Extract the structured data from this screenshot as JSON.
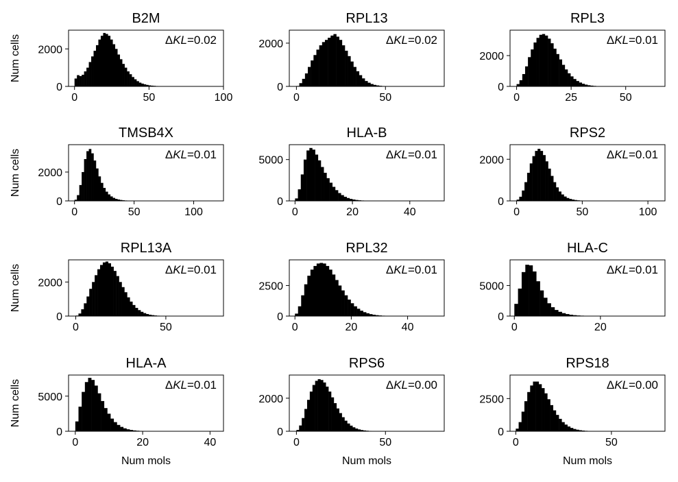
{
  "figure": {
    "ylabel": "Num cells",
    "xlabel": "Num mols",
    "annotation_prefix": "Δ",
    "annotation_var": "KL",
    "bar_color": "#000000"
  },
  "chart_data": [
    {
      "type": "bar",
      "title": "B2M",
      "annotation_value": "=0.02",
      "xlim": [
        -4,
        100
      ],
      "ylim": [
        0,
        3000
      ],
      "xticks": [
        0,
        50,
        100
      ],
      "yticks": [
        0,
        2000
      ],
      "x_start": 0,
      "bin_width": 1.6,
      "values": [
        420,
        600,
        550,
        620,
        800,
        1000,
        1300,
        1600,
        1900,
        2200,
        2500,
        2700,
        2850,
        2800,
        2700,
        2500,
        2250,
        2000,
        1700,
        1450,
        1200,
        1000,
        800,
        650,
        500,
        380,
        280,
        200,
        150,
        110,
        80,
        55,
        40,
        30,
        20,
        14,
        10,
        7,
        5,
        3,
        2,
        1
      ]
    },
    {
      "type": "bar",
      "title": "RPL13",
      "annotation_value": "=0.02",
      "xlim": [
        -4,
        83
      ],
      "ylim": [
        0,
        2600
      ],
      "xticks": [
        0,
        50
      ],
      "yticks": [
        0,
        2000
      ],
      "x_start": 0,
      "bin_width": 1.6,
      "values": [
        20,
        150,
        350,
        600,
        900,
        1200,
        1450,
        1700,
        1900,
        2050,
        2150,
        2250,
        2350,
        2420,
        2300,
        2150,
        1900,
        1650,
        1400,
        1150,
        900,
        700,
        520,
        370,
        250,
        170,
        110,
        70,
        45,
        28,
        17,
        10,
        6,
        4,
        2,
        1
      ]
    },
    {
      "type": "bar",
      "title": "RPL3",
      "annotation_value": "=0.01",
      "xlim": [
        -3,
        68
      ],
      "ylim": [
        0,
        3650
      ],
      "xticks": [
        0,
        25,
        50
      ],
      "yticks": [
        0,
        2000
      ],
      "x_start": 0,
      "bin_width": 1.3,
      "values": [
        150,
        400,
        800,
        1300,
        1900,
        2400,
        2850,
        3150,
        3350,
        3400,
        3300,
        3100,
        2800,
        2450,
        2100,
        1750,
        1400,
        1100,
        850,
        650,
        480,
        350,
        250,
        170,
        115,
        75,
        50,
        32,
        20,
        13,
        8,
        5,
        3,
        2
      ]
    },
    {
      "type": "bar",
      "title": "TMSB4X",
      "annotation_value": "=0.01",
      "xlim": [
        -5,
        125
      ],
      "ylim": [
        0,
        3900
      ],
      "xticks": [
        0,
        50,
        100
      ],
      "yticks": [
        0,
        2000
      ],
      "x_start": 0,
      "bin_width": 2,
      "values": [
        80,
        400,
        1100,
        2000,
        2900,
        3450,
        3600,
        3300,
        2800,
        2250,
        1700,
        1250,
        900,
        640,
        450,
        310,
        210,
        140,
        95,
        64,
        43,
        29,
        19,
        13,
        9,
        6,
        4,
        2,
        1
      ]
    },
    {
      "type": "bar",
      "title": "HLA-B",
      "annotation_value": "=0.01",
      "xlim": [
        -2,
        52
      ],
      "ylim": [
        0,
        6800
      ],
      "xticks": [
        0,
        20,
        40
      ],
      "yticks": [
        0,
        5000
      ],
      "x_start": 0,
      "bin_width": 1,
      "values": [
        300,
        1400,
        3200,
        5000,
        6100,
        6400,
        6200,
        5600,
        4900,
        4100,
        3400,
        2750,
        2200,
        1700,
        1300,
        950,
        700,
        500,
        350,
        240,
        165,
        110,
        75,
        50,
        33,
        22,
        14,
        9,
        6,
        4,
        2,
        1
      ]
    },
    {
      "type": "bar",
      "title": "RPS2",
      "annotation_value": "=0.01",
      "xlim": [
        -5,
        113
      ],
      "ylim": [
        0,
        2700
      ],
      "xticks": [
        0,
        50,
        100
      ],
      "yticks": [
        0,
        2000
      ],
      "x_start": 0,
      "bin_width": 2,
      "values": [
        60,
        200,
        500,
        900,
        1350,
        1800,
        2150,
        2400,
        2500,
        2400,
        2200,
        1900,
        1550,
        1200,
        900,
        650,
        450,
        310,
        210,
        140,
        95,
        63,
        42,
        28,
        18,
        12,
        8,
        5,
        3,
        2,
        1
      ]
    },
    {
      "type": "bar",
      "title": "RPL13A",
      "annotation_value": "=0.01",
      "xlim": [
        -4,
        82
      ],
      "ylim": [
        0,
        3300
      ],
      "xticks": [
        0,
        50
      ],
      "yticks": [
        0,
        2000
      ],
      "x_start": 0,
      "bin_width": 1.5,
      "values": [
        30,
        150,
        400,
        750,
        1150,
        1600,
        2000,
        2400,
        2750,
        3000,
        3150,
        3200,
        3100,
        2900,
        2650,
        2350,
        2000,
        1700,
        1400,
        1100,
        850,
        650,
        480,
        350,
        250,
        175,
        120,
        80,
        55,
        36,
        24,
        15,
        10,
        6,
        4,
        2,
        1
      ]
    },
    {
      "type": "bar",
      "title": "RPL32",
      "annotation_value": "=0.01",
      "xlim": [
        -2,
        53
      ],
      "ylim": [
        0,
        4600
      ],
      "xticks": [
        0,
        20,
        40
      ],
      "yticks": [
        0,
        2500
      ],
      "x_start": 0,
      "bin_width": 1.1,
      "values": [
        200,
        800,
        1700,
        2600,
        3300,
        3800,
        4100,
        4300,
        4350,
        4300,
        4100,
        3800,
        3400,
        2950,
        2500,
        2100,
        1700,
        1350,
        1050,
        800,
        600,
        440,
        320,
        230,
        160,
        110,
        75,
        50,
        33,
        22,
        14,
        9,
        6,
        4,
        2,
        1
      ]
    },
    {
      "type": "bar",
      "title": "HLA-C",
      "annotation_value": "=0.01",
      "xlim": [
        -1,
        35
      ],
      "ylim": [
        0,
        9200
      ],
      "xticks": [
        0,
        20
      ],
      "yticks": [
        0,
        5000
      ],
      "x_start": 0,
      "bin_width": 0.85,
      "values": [
        2000,
        4500,
        7200,
        8400,
        8300,
        7300,
        5700,
        4200,
        3000,
        2100,
        1450,
        1000,
        700,
        480,
        330,
        220,
        150,
        100,
        70,
        45,
        30,
        20,
        13,
        9,
        6,
        4,
        2,
        1
      ]
    },
    {
      "type": "bar",
      "title": "HLA-A",
      "annotation_value": "=0.01",
      "xlim": [
        -2,
        44
      ],
      "ylim": [
        0,
        8000
      ],
      "xticks": [
        0,
        20,
        40
      ],
      "yticks": [
        0,
        5000
      ],
      "x_start": 0,
      "bin_width": 0.95,
      "values": [
        1400,
        3500,
        5600,
        7000,
        7600,
        7300,
        6500,
        5400,
        4300,
        3300,
        2500,
        1800,
        1300,
        900,
        620,
        420,
        280,
        185,
        120,
        80,
        52,
        34,
        22,
        14,
        9,
        6,
        4,
        2,
        1
      ]
    },
    {
      "type": "bar",
      "title": "RPS6",
      "annotation_value": "=0.00",
      "xlim": [
        -4,
        83
      ],
      "ylim": [
        0,
        3400
      ],
      "xticks": [
        0,
        50
      ],
      "yticks": [
        0,
        2000
      ],
      "x_start": 0,
      "bin_width": 1.5,
      "values": [
        80,
        350,
        800,
        1350,
        1900,
        2400,
        2800,
        3050,
        3150,
        3100,
        2950,
        2700,
        2400,
        2050,
        1700,
        1380,
        1100,
        850,
        640,
        470,
        340,
        240,
        165,
        112,
        75,
        50,
        33,
        22,
        14,
        9,
        6,
        4,
        2,
        1
      ]
    },
    {
      "type": "bar",
      "title": "RPS18",
      "annotation_value": "=0.00",
      "xlim": [
        -3,
        78
      ],
      "ylim": [
        0,
        4300
      ],
      "xticks": [
        0,
        50
      ],
      "yticks": [
        0,
        2500
      ],
      "x_start": 0,
      "bin_width": 1.5,
      "values": [
        200,
        700,
        1500,
        2300,
        3000,
        3500,
        3800,
        3800,
        3600,
        3300,
        2900,
        2450,
        2000,
        1600,
        1250,
        950,
        700,
        510,
        365,
        255,
        175,
        120,
        80,
        53,
        35,
        23,
        15,
        10,
        6,
        4,
        2,
        1
      ]
    }
  ]
}
